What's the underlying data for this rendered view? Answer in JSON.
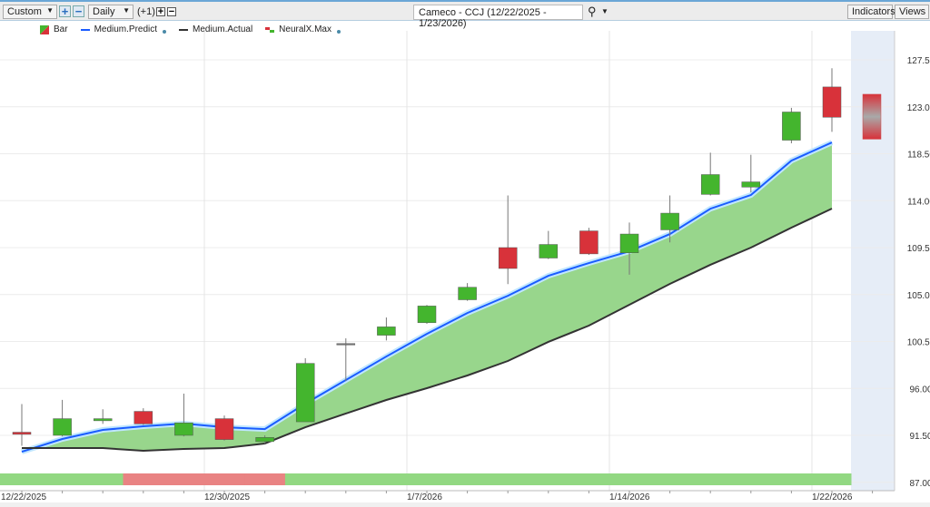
{
  "toolbar": {
    "period_select": "Custom",
    "interval_select": "Daily",
    "offset_label": "(+1)",
    "symbol_title": "Cameco - CCJ (12/22/2025 - 1/23/2026)",
    "indicators_label": "Indicators",
    "views_label": "Views"
  },
  "legend": [
    {
      "label": "Bar"
    },
    {
      "label": "Medium.Predict"
    },
    {
      "label": "Medium.Actual"
    },
    {
      "label": "NeuralX.Max"
    }
  ],
  "colors": {
    "up": "#44b52e",
    "down": "#d8323a",
    "predict": "#1a5cff",
    "actual": "#333333",
    "fill": "#98d68c",
    "signal_up": "#92d882",
    "signal_down": "#e98383",
    "forecast_bg": "#e6edf7"
  },
  "chart_data": {
    "type": "candlestick",
    "ylim": [
      87.0,
      129.0
    ],
    "y_ticks": [
      "127.50",
      "123.00",
      "118.50",
      "114.00",
      "109.50",
      "105.00",
      "100.50",
      "96.00",
      "91.50",
      "87.00"
    ],
    "x_labels": [
      "12/22/2025",
      "12/30/2025",
      "1/7/2026",
      "1/14/2026",
      "1/22/2026"
    ],
    "candles": [
      {
        "o": 91.8,
        "c": 91.6,
        "h": 94.5,
        "l": 90.5
      },
      {
        "o": 91.5,
        "c": 93.1,
        "h": 94.9,
        "l": 91.4
      },
      {
        "o": 92.9,
        "c": 93.1,
        "h": 94.0,
        "l": 92.6
      },
      {
        "o": 93.8,
        "c": 92.6,
        "h": 94.1,
        "l": 92.5
      },
      {
        "o": 91.5,
        "c": 92.7,
        "h": 95.5,
        "l": 91.4
      },
      {
        "o": 93.1,
        "c": 91.1,
        "h": 93.4,
        "l": 91.0
      },
      {
        "o": 90.9,
        "c": 91.3,
        "h": 91.5,
        "l": 90.7
      },
      {
        "o": 92.8,
        "c": 98.4,
        "h": 98.9,
        "l": 92.8
      },
      {
        "o": 100.3,
        "c": 100.3,
        "h": 100.8,
        "l": 96.7
      },
      {
        "o": 101.1,
        "c": 101.9,
        "h": 102.8,
        "l": 100.6
      },
      {
        "o": 102.3,
        "c": 103.9,
        "h": 104.0,
        "l": 102.2
      },
      {
        "o": 104.5,
        "c": 105.7,
        "h": 106.1,
        "l": 104.4
      },
      {
        "o": 109.5,
        "c": 107.5,
        "h": 114.5,
        "l": 106.0
      },
      {
        "o": 108.5,
        "c": 109.8,
        "h": 111.1,
        "l": 108.4
      },
      {
        "o": 111.1,
        "c": 108.9,
        "h": 111.4,
        "l": 108.8
      },
      {
        "o": 109.0,
        "c": 110.8,
        "h": 111.9,
        "l": 106.9
      },
      {
        "o": 111.2,
        "c": 112.8,
        "h": 114.5,
        "l": 110.0
      },
      {
        "o": 114.6,
        "c": 116.5,
        "h": 118.6,
        "l": 114.5
      },
      {
        "o": 115.3,
        "c": 115.8,
        "h": 118.4,
        "l": 114.8
      },
      {
        "o": 119.8,
        "c": 122.5,
        "h": 122.9,
        "l": 119.5
      },
      {
        "o": 124.9,
        "c": 122.0,
        "h": 126.7,
        "l": 120.6
      }
    ],
    "forecast": {
      "o": 124.2,
      "c": 119.9
    },
    "medium_predict": [
      89.93,
      91.15,
      92.02,
      92.37,
      92.63,
      92.28,
      92.1,
      94.54,
      96.8,
      99.06,
      101.23,
      103.23,
      104.88,
      106.8,
      108.02,
      109.15,
      110.8,
      113.23,
      114.54,
      117.84,
      119.58
    ],
    "medium_actual": [
      90.28,
      90.28,
      90.28,
      90.02,
      90.2,
      90.28,
      90.72,
      92.28,
      93.59,
      94.89,
      96.02,
      97.24,
      98.63,
      100.46,
      102.02,
      104.02,
      106.02,
      107.85,
      109.5,
      111.41,
      113.24
    ],
    "signals": [
      "up",
      "up",
      "up",
      "down",
      "down",
      "down",
      "down",
      "up",
      "up",
      "up",
      "up",
      "up",
      "up",
      "up",
      "up",
      "up",
      "up",
      "up",
      "up",
      "up",
      "up"
    ]
  }
}
